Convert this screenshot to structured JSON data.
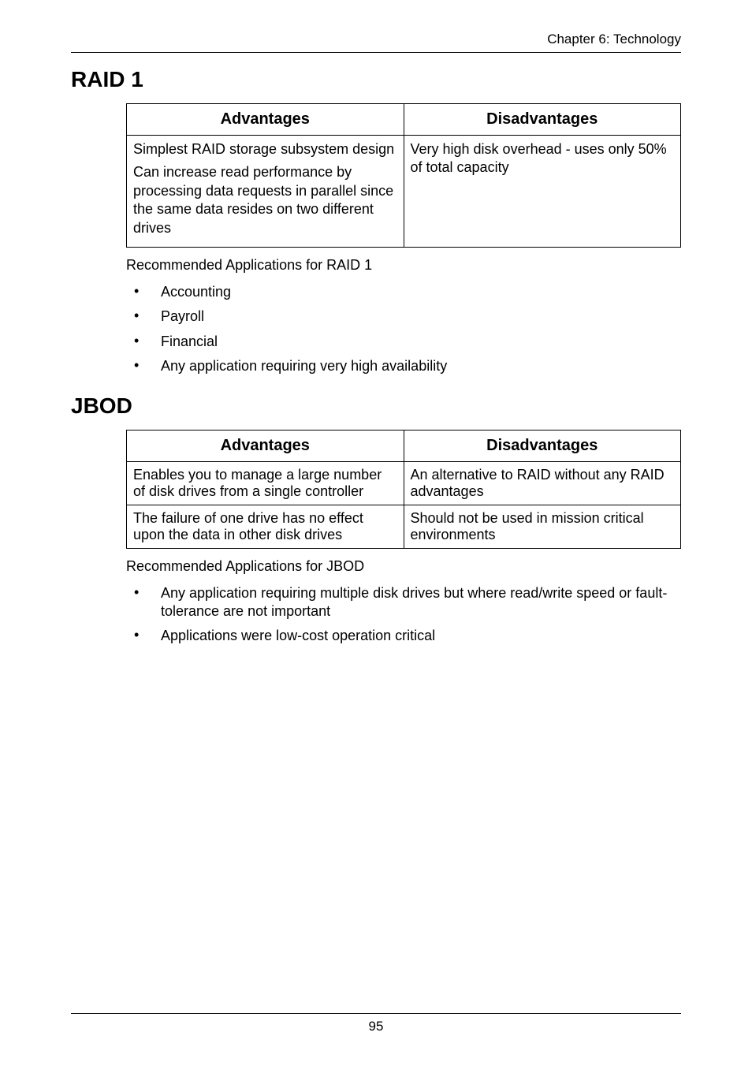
{
  "chapter_header": "Chapter 6: Technology",
  "page_number": "95",
  "raid1": {
    "title": "RAID 1",
    "col_adv": "Advantages",
    "col_dis": "Disadvantages",
    "adv1": "Simplest RAID storage subsystem design",
    "adv2": "Can increase read performance by processing data requests in parallel since the same data resides on two different drives",
    "dis1": "Very high disk overhead - uses only 50% of total capacity",
    "rec_title": "Recommended Applications for RAID 1",
    "b1": "Accounting",
    "b2": "Payroll",
    "b3": "Financial",
    "b4": "Any application requiring very high availability"
  },
  "jbod": {
    "title": "JBOD",
    "col_adv": "Advantages",
    "col_dis": "Disadvantages",
    "adv1": "Enables you to manage a large number of disk drives from a single controller",
    "dis1": "An alternative to RAID without any RAID advantages",
    "adv2": "The failure of one drive has no effect upon the data in other disk drives",
    "dis2": "Should not be used in mission critical environments",
    "rec_title": "Recommended Applications for JBOD",
    "b1": "Any application requiring multiple disk drives but where read/write speed or fault-tolerance are not important",
    "b2": "Applications were low-cost operation critical"
  }
}
